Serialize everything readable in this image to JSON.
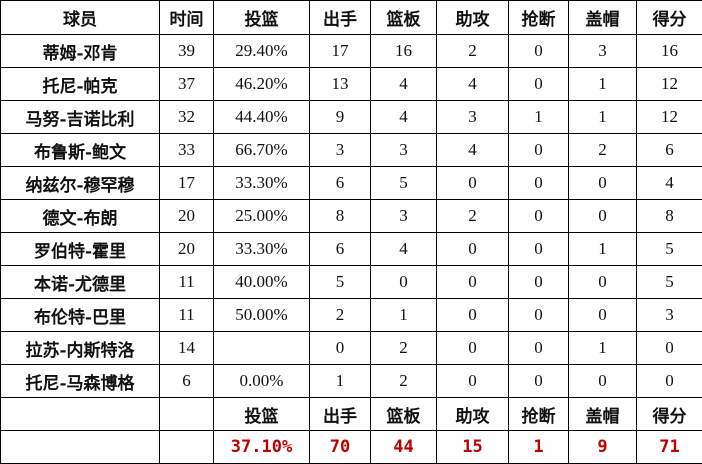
{
  "headers": [
    "球员",
    "时间",
    "投篮",
    "出手",
    "篮板",
    "助攻",
    "抢断",
    "盖帽",
    "得分"
  ],
  "rows": [
    [
      "蒂姆-邓肯",
      "39",
      "29.40%",
      "17",
      "16",
      "2",
      "0",
      "3",
      "16"
    ],
    [
      "托尼-帕克",
      "37",
      "46.20%",
      "13",
      "4",
      "4",
      "0",
      "1",
      "12"
    ],
    [
      "马努-吉诺比利",
      "32",
      "44.40%",
      "9",
      "4",
      "3",
      "1",
      "1",
      "12"
    ],
    [
      "布鲁斯-鲍文",
      "33",
      "66.70%",
      "3",
      "3",
      "4",
      "0",
      "2",
      "6"
    ],
    [
      "纳兹尔-穆罕穆",
      "17",
      "33.30%",
      "6",
      "5",
      "0",
      "0",
      "0",
      "4"
    ],
    [
      "德文-布朗",
      "20",
      "25.00%",
      "8",
      "3",
      "2",
      "0",
      "0",
      "8"
    ],
    [
      "罗伯特-霍里",
      "20",
      "33.30%",
      "6",
      "4",
      "0",
      "0",
      "1",
      "5"
    ],
    [
      "本诺-尤德里",
      "11",
      "40.00%",
      "5",
      "0",
      "0",
      "0",
      "0",
      "5"
    ],
    [
      "布伦特-巴里",
      "11",
      "50.00%",
      "2",
      "1",
      "0",
      "0",
      "0",
      "3"
    ],
    [
      "拉苏-内斯特洛",
      "14",
      "",
      "0",
      "2",
      "0",
      "0",
      "1",
      "0"
    ],
    [
      "托尼-马森博格",
      "6",
      "0.00%",
      "1",
      "2",
      "0",
      "0",
      "0",
      "0"
    ]
  ],
  "summary_headers": [
    "投篮",
    "出手",
    "篮板",
    "助攻",
    "抢断",
    "盖帽",
    "得分"
  ],
  "summary_values": [
    "37.10%",
    "70",
    "44",
    "15",
    "1",
    "9",
    "71"
  ],
  "colors": {
    "summary_value": "#c00000"
  }
}
